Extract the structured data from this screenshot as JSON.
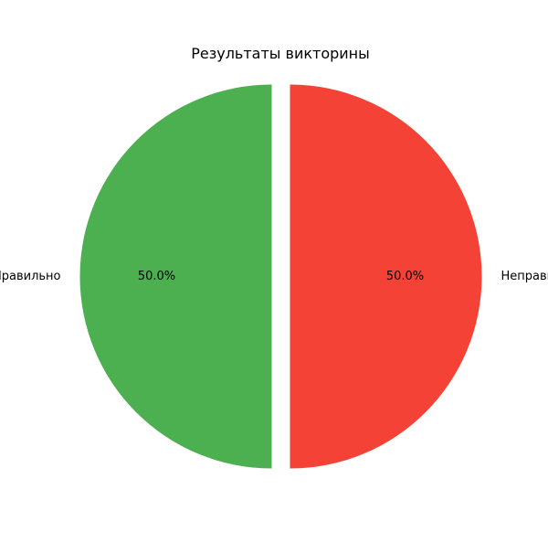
{
  "chart_data": {
    "type": "pie",
    "title": "Результаты викторины",
    "slices": [
      {
        "label": "Правильно",
        "value": 50.0,
        "pct_label": "50.0%",
        "color": "#4caf50",
        "exploded": true
      },
      {
        "label": "Неправильно",
        "value": 50.0,
        "pct_label": "50.0%",
        "color": "#f44336",
        "exploded": true
      }
    ],
    "legend": "none",
    "start_angle_deg": 90
  }
}
